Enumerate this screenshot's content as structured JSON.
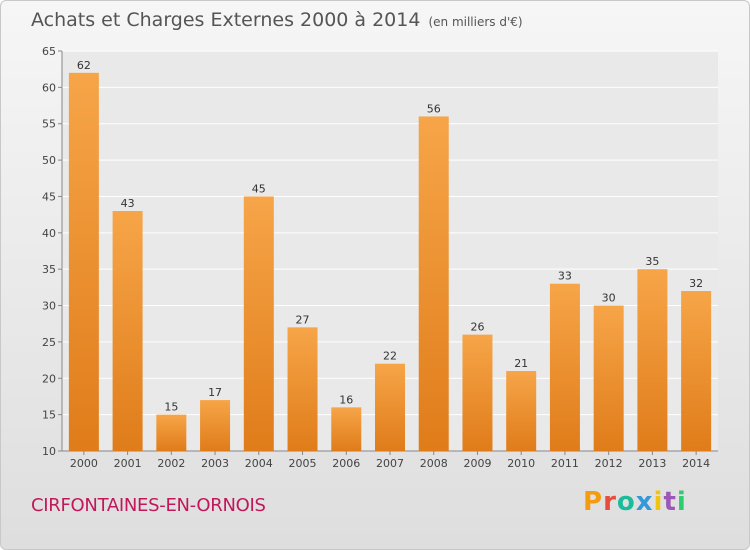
{
  "title": "Achats et Charges Externes 2000 à 2014",
  "unit": "(en milliers d'€)",
  "commune": "CIRFONTAINES-EN-ORNOIS",
  "logo": {
    "text": "Proxiti",
    "colors": [
      "#f39c12",
      "#e74c3c",
      "#1abc9c",
      "#3498db",
      "#f1c40f",
      "#9b59b6",
      "#2ecc71"
    ]
  },
  "colors": {
    "bar_light": "#f6a548",
    "bar_dark": "#e07c1a",
    "commune": "#c2185b"
  },
  "chart_data": {
    "type": "bar",
    "title": "Achats et Charges Externes 2000 à 2014",
    "categories": [
      "2000",
      "2001",
      "2002",
      "2003",
      "2004",
      "2005",
      "2006",
      "2007",
      "2008",
      "2009",
      "2010",
      "2011",
      "2012",
      "2013",
      "2014"
    ],
    "values": [
      62,
      43,
      15,
      17,
      45,
      27,
      16,
      22,
      56,
      26,
      21,
      33,
      30,
      35,
      32
    ],
    "ylim": [
      10,
      65
    ],
    "yticks": [
      10,
      15,
      20,
      25,
      30,
      35,
      40,
      45,
      50,
      55,
      60,
      65
    ],
    "grid": true,
    "xlabel": "",
    "ylabel": ""
  }
}
